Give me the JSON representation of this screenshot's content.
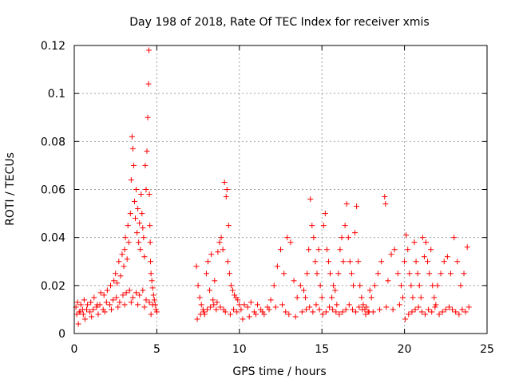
{
  "chart_data": {
    "type": "scatter",
    "title": "Day 198 of 2018, Rate Of TEC Index for receiver xmis",
    "xlabel": "GPS time / hours",
    "ylabel": "ROTI / TECUs",
    "xlim": [
      0,
      25
    ],
    "ylim": [
      0,
      0.12
    ],
    "x_ticks": [
      0,
      5,
      10,
      15,
      20,
      25
    ],
    "x_tick_labels": [
      "0",
      "5",
      "10",
      "15",
      "20",
      "25"
    ],
    "y_ticks": [
      0,
      0.02,
      0.04,
      0.06,
      0.08,
      0.1,
      0.12
    ],
    "y_tick_labels": [
      "0",
      "0.02",
      "0.04",
      "0.06",
      "0.08",
      "0.1",
      "0.12"
    ],
    "grid": true,
    "marker": "+",
    "color": "#ff0000",
    "series": [
      {
        "x": [
          0.1,
          0.2,
          0.3,
          0.4,
          0.5,
          0.6,
          0.8,
          1.0,
          1.2,
          1.4,
          1.6,
          1.8,
          2.0,
          2.2,
          2.4,
          2.5,
          2.6,
          2.7,
          2.8,
          2.9,
          3.0,
          3.05,
          3.1,
          3.2,
          3.25,
          3.3,
          3.4,
          3.45,
          3.5,
          3.55,
          3.6,
          3.65,
          3.7,
          3.75,
          3.8,
          3.85,
          3.9,
          3.95,
          4.0,
          4.05,
          4.1,
          4.15,
          4.2,
          4.25,
          4.3,
          4.35,
          4.4,
          4.45,
          4.5,
          4.52,
          4.55,
          4.58,
          4.6,
          4.62,
          4.65,
          4.7,
          4.75,
          4.8,
          4.85,
          4.9,
          4.95,
          5.0,
          0.15,
          0.35,
          0.55,
          0.75,
          0.95,
          1.15,
          1.35,
          1.55,
          1.75,
          1.95,
          2.15,
          2.35,
          2.55,
          2.75,
          2.95,
          3.15,
          3.35,
          3.55,
          3.75,
          3.95,
          4.15,
          4.35,
          4.55,
          4.75,
          0.25,
          0.65,
          1.05,
          1.45,
          1.85,
          2.25,
          2.65,
          3.05,
          3.45,
          3.85,
          4.25,
          4.65,
          7.4,
          7.5,
          7.6,
          7.7,
          7.8,
          7.9,
          8.0,
          8.1,
          8.2,
          8.3,
          8.4,
          8.5,
          8.6,
          8.7,
          8.8,
          8.9,
          9.0,
          9.1,
          9.2,
          9.25,
          9.3,
          9.35,
          9.4,
          9.5,
          9.6,
          9.7,
          9.8,
          9.9,
          10.0,
          7.45,
          7.65,
          7.85,
          8.05,
          8.25,
          8.45,
          8.65,
          8.85,
          9.05,
          9.15,
          9.45,
          9.65,
          9.85,
          10.1,
          10.3,
          10.5,
          10.7,
          10.9,
          11.1,
          11.3,
          11.5,
          11.7,
          11.9,
          12.1,
          12.3,
          12.5,
          12.7,
          12.9,
          13.1,
          13.3,
          13.5,
          13.7,
          13.9,
          10.2,
          10.6,
          11.0,
          11.4,
          11.8,
          12.2,
          12.6,
          12.8,
          13.0,
          13.4,
          13.8,
          14.0,
          14.1,
          14.2,
          14.3,
          14.4,
          14.5,
          14.6,
          14.7,
          14.8,
          14.9,
          15.0,
          15.1,
          15.2,
          15.3,
          15.4,
          15.5,
          15.6,
          15.7,
          15.8,
          15.9,
          14.05,
          14.25,
          14.45,
          14.65,
          14.85,
          15.05,
          15.25,
          15.45,
          15.65,
          15.85,
          16.0,
          16.1,
          16.2,
          16.3,
          16.4,
          16.5,
          16.6,
          16.7,
          16.8,
          16.9,
          17.0,
          17.1,
          17.2,
          17.3,
          17.4,
          17.5,
          17.6,
          17.7,
          17.8,
          17.9,
          16.05,
          16.25,
          16.45,
          16.65,
          16.85,
          17.05,
          17.25,
          17.45,
          17.65,
          17.85,
          18.0,
          18.2,
          18.4,
          18.6,
          18.8,
          18.85,
          19.0,
          19.2,
          19.4,
          19.6,
          19.8,
          19.9,
          18.1,
          18.5,
          18.9,
          19.3,
          19.7,
          20.0,
          20.1,
          20.2,
          20.3,
          20.4,
          20.5,
          20.6,
          20.7,
          20.8,
          20.9,
          21.0,
          21.1,
          21.2,
          21.3,
          21.4,
          21.5,
          21.6,
          21.7,
          21.8,
          21.9,
          20.05,
          20.25,
          20.45,
          20.65,
          20.85,
          21.05,
          21.25,
          21.45,
          21.65,
          21.85,
          22.0,
          22.2,
          22.4,
          22.6,
          22.8,
          23.0,
          23.2,
          23.4,
          23.6,
          23.8,
          22.1,
          22.3,
          22.5,
          22.7,
          22.9,
          23.1,
          23.3,
          23.5,
          23.7,
          23.9
        ],
        "y": [
          0.011,
          0.013,
          0.009,
          0.012,
          0.01,
          0.014,
          0.012,
          0.013,
          0.015,
          0.012,
          0.017,
          0.016,
          0.018,
          0.02,
          0.022,
          0.025,
          0.021,
          0.03,
          0.024,
          0.033,
          0.028,
          0.035,
          0.04,
          0.031,
          0.045,
          0.038,
          0.05,
          0.064,
          0.082,
          0.077,
          0.07,
          0.055,
          0.048,
          0.06,
          0.042,
          0.052,
          0.038,
          0.046,
          0.035,
          0.058,
          0.05,
          0.044,
          0.04,
          0.032,
          0.07,
          0.06,
          0.076,
          0.09,
          0.104,
          0.118,
          0.058,
          0.045,
          0.038,
          0.03,
          0.025,
          0.022,
          0.019,
          0.016,
          0.014,
          0.012,
          0.01,
          0.009,
          0.008,
          0.009,
          0.008,
          0.01,
          0.009,
          0.01,
          0.011,
          0.012,
          0.01,
          0.013,
          0.012,
          0.014,
          0.015,
          0.013,
          0.016,
          0.017,
          0.018,
          0.015,
          0.017,
          0.016,
          0.018,
          0.014,
          0.013,
          0.012,
          0.004,
          0.006,
          0.007,
          0.008,
          0.009,
          0.01,
          0.011,
          0.012,
          0.013,
          0.012,
          0.011,
          0.008,
          0.028,
          0.02,
          0.015,
          0.012,
          0.01,
          0.008,
          0.025,
          0.03,
          0.018,
          0.033,
          0.014,
          0.022,
          0.01,
          0.034,
          0.038,
          0.04,
          0.035,
          0.063,
          0.057,
          0.06,
          0.03,
          0.045,
          0.025,
          0.02,
          0.018,
          0.016,
          0.015,
          0.014,
          0.012,
          0.006,
          0.008,
          0.009,
          0.01,
          0.011,
          0.012,
          0.013,
          0.011,
          0.01,
          0.009,
          0.008,
          0.01,
          0.009,
          0.01,
          0.012,
          0.011,
          0.013,
          0.009,
          0.012,
          0.01,
          0.008,
          0.011,
          0.014,
          0.02,
          0.028,
          0.035,
          0.025,
          0.04,
          0.038,
          0.022,
          0.015,
          0.02,
          0.018,
          0.006,
          0.007,
          0.008,
          0.009,
          0.01,
          0.011,
          0.012,
          0.009,
          0.008,
          0.007,
          0.009,
          0.015,
          0.025,
          0.035,
          0.056,
          0.045,
          0.04,
          0.03,
          0.025,
          0.035,
          0.02,
          0.015,
          0.045,
          0.05,
          0.035,
          0.03,
          0.025,
          0.015,
          0.02,
          0.018,
          0.012,
          0.01,
          0.011,
          0.009,
          0.012,
          0.01,
          0.008,
          0.009,
          0.011,
          0.01,
          0.009,
          0.025,
          0.035,
          0.04,
          0.03,
          0.045,
          0.054,
          0.04,
          0.03,
          0.025,
          0.02,
          0.042,
          0.053,
          0.03,
          0.02,
          0.015,
          0.012,
          0.01,
          0.011,
          0.009,
          0.018,
          0.008,
          0.009,
          0.01,
          0.012,
          0.01,
          0.009,
          0.011,
          0.01,
          0.008,
          0.009,
          0.015,
          0.02,
          0.025,
          0.03,
          0.057,
          0.054,
          0.022,
          0.033,
          0.035,
          0.025,
          0.02,
          0.015,
          0.009,
          0.01,
          0.011,
          0.01,
          0.012,
          0.03,
          0.041,
          0.035,
          0.025,
          0.02,
          0.015,
          0.038,
          0.03,
          0.025,
          0.02,
          0.015,
          0.04,
          0.032,
          0.038,
          0.03,
          0.025,
          0.035,
          0.02,
          0.015,
          0.012,
          0.006,
          0.008,
          0.009,
          0.01,
          0.011,
          0.009,
          0.008,
          0.01,
          0.009,
          0.011,
          0.02,
          0.025,
          0.03,
          0.032,
          0.025,
          0.04,
          0.03,
          0.02,
          0.025,
          0.036,
          0.008,
          0.009,
          0.01,
          0.011,
          0.01,
          0.009,
          0.008,
          0.01,
          0.009,
          0.011
        ]
      }
    ]
  }
}
